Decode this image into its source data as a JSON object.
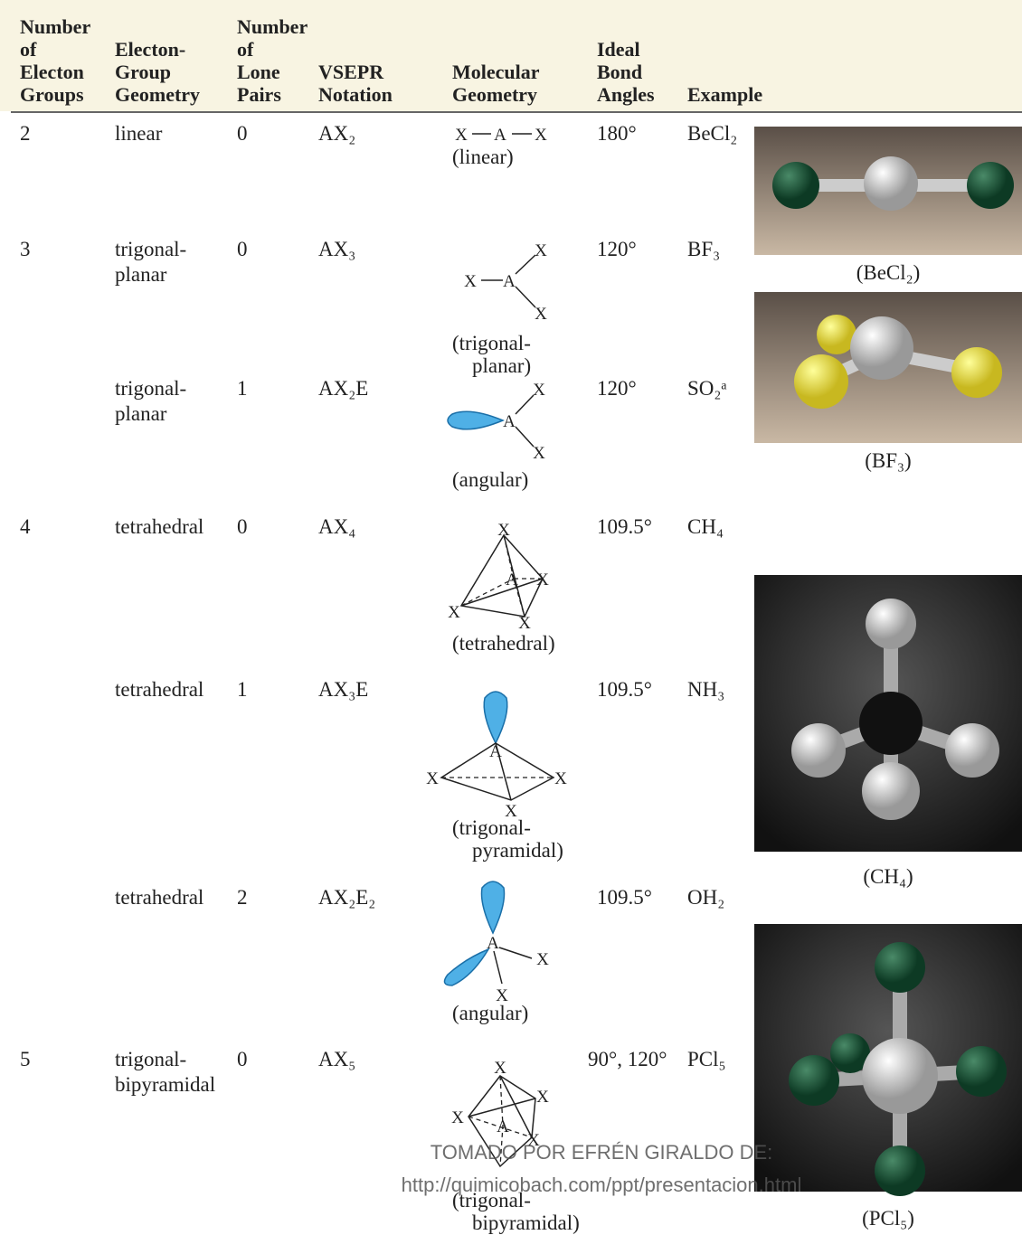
{
  "table": {
    "headers": [
      [
        "Number",
        "of",
        "Electon",
        "Groups"
      ],
      [
        "Electon-",
        "Group",
        "Geometry"
      ],
      [
        "Number",
        "of",
        "Lone",
        "Pairs"
      ],
      [
        "VSEPR",
        "Notation"
      ],
      [
        "Molecular",
        "Geometry"
      ],
      [
        "Ideal",
        "Bond",
        "Angles"
      ],
      [
        "Example"
      ]
    ],
    "rows": [
      {
        "groups": "2",
        "geometry": [
          "linear"
        ],
        "lone_pairs": "0",
        "notation": "AX₂",
        "shape": [
          "(linear)"
        ],
        "angles": "180°",
        "example": "BeCl₂"
      },
      {
        "groups": "3",
        "geometry": [
          "trigonal-",
          "planar"
        ],
        "lone_pairs": "0",
        "notation": "AX₃",
        "shape": [
          "(trigonal-",
          "planar)"
        ],
        "angles": "120°",
        "example": "BF₃"
      },
      {
        "geometry": [
          "trigonal-",
          "planar"
        ],
        "lone_pairs": "1",
        "notation": "AX₂E",
        "shape": [
          "(angular)"
        ],
        "angles": "120°",
        "example": "SO₂ᵃ"
      },
      {
        "groups": "4",
        "geometry": [
          "tetrahedral"
        ],
        "lone_pairs": "0",
        "notation": "AX₄",
        "shape": [
          "(tetrahedral)"
        ],
        "angles": "109.5°",
        "example": "CH₄"
      },
      {
        "geometry": [
          "tetrahedral"
        ],
        "lone_pairs": "1",
        "notation": "AX₃E",
        "shape": [
          "(trigonal-",
          "pyramidal)"
        ],
        "angles": "109.5°",
        "example": "NH₃"
      },
      {
        "geometry": [
          "tetrahedral"
        ],
        "lone_pairs": "2",
        "notation": "AX₂E₂",
        "shape": [
          "(angular)"
        ],
        "angles": "109.5°",
        "example": "OH₂"
      },
      {
        "groups": "5",
        "geometry": [
          "trigonal-",
          "bipyramidal"
        ],
        "lone_pairs": "0",
        "notation": "AX₅",
        "shape": [
          "(trigonal-",
          "bipyramidal)"
        ],
        "angles": "90°, 120°",
        "example": "PCl₅"
      }
    ]
  },
  "atom_symbols": {
    "central": "A",
    "ligand": "X"
  },
  "photo_captions": [
    "(BeCl₂)",
    "(BF₃)",
    "(CH₄)",
    "(PCl₅)"
  ],
  "watermark": [
    "TOMADO POR EFRÉN GIRALDO DE:",
    "http://quimicobach.com/ppt/presentacion.html"
  ]
}
